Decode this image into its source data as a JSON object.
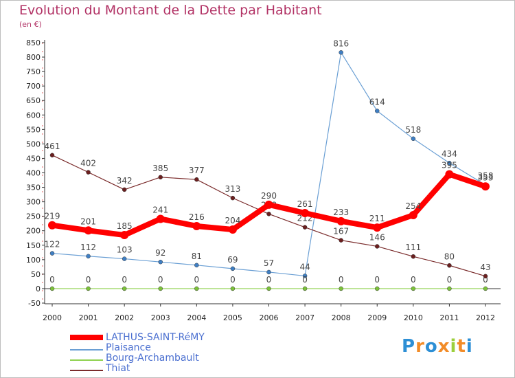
{
  "title": "Evolution du Montant de la Dette par Habitant",
  "unit": "(en €)",
  "logo": "Proxiti",
  "chart_data": {
    "type": "line",
    "x": [
      "2000",
      "2001",
      "2002",
      "2003",
      "2004",
      "2005",
      "2006",
      "2007",
      "2008",
      "2009",
      "2010",
      "2011",
      "2012"
    ],
    "ylim": [
      -50,
      850
    ],
    "yticks": [
      -50,
      0,
      50,
      100,
      150,
      200,
      250,
      300,
      350,
      400,
      450,
      500,
      550,
      600,
      650,
      700,
      750,
      800,
      850
    ],
    "grid": false,
    "legend_position": "bottom-left",
    "series": [
      {
        "name": "Plaisance",
        "color": "#6a9fd4",
        "marker": "#3f7fc4",
        "width": 1.2,
        "values": [
          122,
          112,
          103,
          92,
          81,
          69,
          57,
          44,
          816,
          614,
          518,
          434,
          358
        ],
        "labels": [
          "122",
          "112",
          "103",
          "92",
          "81",
          "69",
          "57",
          "44",
          "816",
          "614",
          "518",
          "434",
          "358"
        ]
      },
      {
        "name": "Bourg-Archambault",
        "color": "#8fd14f",
        "marker": "#7cc23a",
        "width": 1.2,
        "values": [
          0,
          0,
          0,
          0,
          0,
          0,
          0,
          0,
          0,
          0,
          0,
          0,
          0
        ],
        "labels": [
          "0",
          "0",
          "0",
          "0",
          "0",
          "0",
          "0",
          "0",
          "0",
          "0",
          "0",
          "0",
          "0"
        ]
      },
      {
        "name": "Thiat",
        "color": "#7a2b2b",
        "marker": "#6b1f1f",
        "width": 1.2,
        "values": [
          461,
          402,
          342,
          385,
          377,
          313,
          258,
          212,
          167,
          146,
          111,
          80,
          43
        ],
        "labels": [
          "461",
          "402",
          "342",
          "385",
          "377",
          "313",
          "258",
          "212",
          "167",
          "146",
          "111",
          "80",
          "43"
        ]
      },
      {
        "name": "LATHUS-SAINT-RéMY",
        "color": "#ff0000",
        "marker": "#ff0000",
        "width": 8,
        "values": [
          219,
          201,
          185,
          241,
          216,
          204,
          290,
          261,
          233,
          211,
          254,
          395,
          353
        ],
        "labels": [
          "219",
          "201",
          "185",
          "241",
          "216",
          "204",
          "290",
          "261",
          "233",
          "211",
          "254",
          "395",
          "353"
        ]
      }
    ]
  },
  "legend": [
    {
      "name": "LATHUS-SAINT-RéMY",
      "color": "#ff0000",
      "thick": true
    },
    {
      "name": "Plaisance",
      "color": "#6a9fd4",
      "thick": false
    },
    {
      "name": "Bourg-Archambault",
      "color": "#8fd14f",
      "thick": false
    },
    {
      "name": "Thiat",
      "color": "#7a2b2b",
      "thick": false
    }
  ]
}
